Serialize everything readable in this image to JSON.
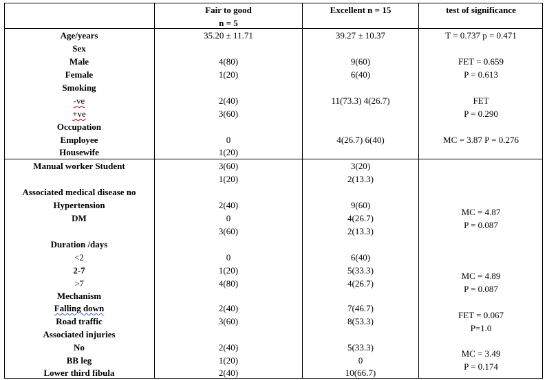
{
  "header": {
    "col2_line1": "Fair to good",
    "col2_line2": "n = 5",
    "col3": "Excellent n = 15",
    "col4": "test of significance"
  },
  "rows": {
    "age_label": "Age/years",
    "age_fair": "35.20 ± 11.71",
    "age_exc": "39.27 ± 10.37",
    "age_sig": "T = 0.737 p = 0.471",
    "sex_label": "Sex",
    "male_label": "Male",
    "male_fair": "4(80)",
    "male_exc": "9(60)",
    "male_sig": "FET = 0.659",
    "female_label": "Female",
    "female_fair": "1(20)",
    "female_exc": "6(40)",
    "female_sig": "P = 0.613",
    "smoking_label": "Smoking",
    "neg_label": "-ve",
    "neg_fair": "2(40)",
    "neg_exc": "11(73.3) 4(26.7)",
    "neg_sig": "FET",
    "pos_label": "+ve",
    "pos_fair": "3(60)",
    "pos_sig": "P = 0.290",
    "occupation_label": "Occupation",
    "employee_label": "Employee",
    "employee_fair": "0",
    "employee_exc": "4(26.7) 6(40)",
    "employee_sig": "MC = 3.87 P = 0.276",
    "housewife_label": "Housewife",
    "housewife_fair": "1(20)",
    "manual_label": "Manual worker Student",
    "manual_fair": "3(60)",
    "manual_exc": "3(20)",
    "student_fair": "1(20)",
    "student_exc": "2(13.3)",
    "amd_label": "Associated medical disease no",
    "hypertension_label": "Hypertension",
    "amd_no_fair": "2(40)",
    "amd_no_exc": "9(60)",
    "dm_label": "DM",
    "hyper_fair": "0",
    "hyper_exc": "4(26.7)",
    "amd_sig_1": "MC = 4.87",
    "amd_sig_2": "P = 0.087",
    "dm_fair": "3(60)",
    "dm_exc": "2(13.3)",
    "duration_label": "Duration /days",
    "lt2_label": "<2",
    "lt2_fair": "0",
    "lt2_exc": "6(40)",
    "d27_label": "2-7",
    "d27_fair": "1(20)",
    "d27_exc": "5(33.3)",
    "gt7_label": ">7",
    "gt7_fair": "4(80)",
    "gt7_exc": "4(26.7)",
    "dur_sig_1": "MC = 4.89",
    "dur_sig_2": "P = 0.087",
    "mechanism_label": "Mechanism",
    "falling_label": "Falling down",
    "falling_fair": "2(40)",
    "falling_exc": "7(46.7)",
    "road_label": "Road traffic",
    "road_fair": "3(60)",
    "road_exc": "8(53.3)",
    "mech_sig_1": "FET = 0.067",
    "mech_sig_2": "P=1.0",
    "injuries_label": "Associated injuries",
    "no_label": "No",
    "no_fair": "2(40)",
    "no_exc": "5(33.3)",
    "bb_label": "BB leg",
    "bb_fair": "1(20)",
    "bb_exc": "0",
    "inj_sig_1": "MC = 3.49",
    "inj_sig_2": "P = 0.174",
    "fibula_label": "Lower third fibula",
    "fibula_fair": "2(40)",
    "fibula_exc": "10(66.7)"
  }
}
